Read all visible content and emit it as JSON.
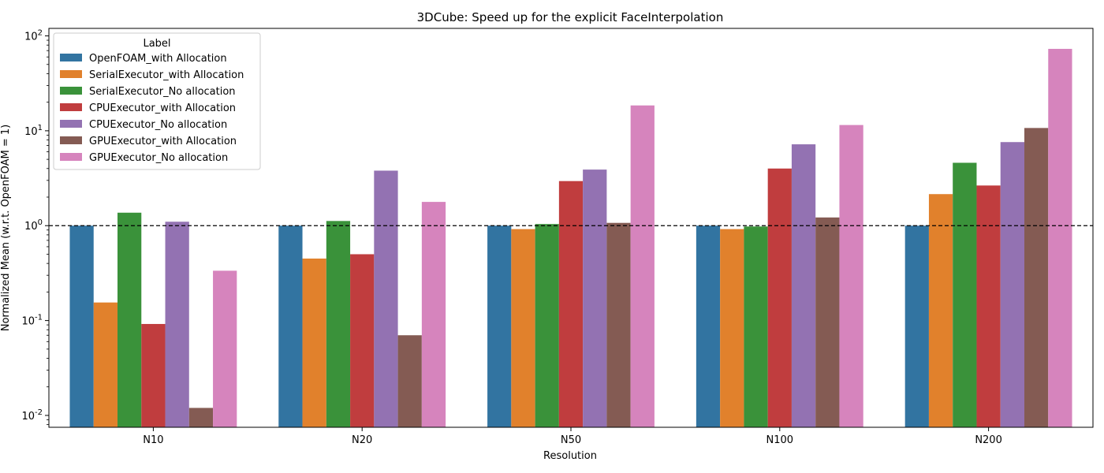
{
  "chart_data": {
    "type": "bar",
    "title": "3DCube: Speed up for the explicit FaceInterpolation",
    "xlabel": "Resolution",
    "ylabel": "Normalized Mean (w.r.t. OpenFOAM = 1)",
    "yscale": "log",
    "ylim": [
      0.0075,
      120
    ],
    "ytick_labels": [
      "10-2",
      "10-1",
      "100",
      "101",
      "102"
    ],
    "categories": [
      "N10",
      "N20",
      "N50",
      "N100",
      "N200"
    ],
    "reference_line": 1,
    "legend_title": "Label",
    "legend_position": "upper-left",
    "series": [
      {
        "name": "OpenFOAM_with Allocation",
        "color": "#3274a1",
        "values": [
          1.0,
          1.0,
          1.0,
          1.0,
          1.0
        ]
      },
      {
        "name": "SerialExecutor_with Allocation",
        "color": "#e1812c",
        "values": [
          0.155,
          0.45,
          0.92,
          0.92,
          2.15
        ]
      },
      {
        "name": "SerialExecutor_No allocation",
        "color": "#3a923a",
        "values": [
          1.37,
          1.12,
          1.04,
          0.98,
          4.6
        ]
      },
      {
        "name": "CPUExecutor_with Allocation",
        "color": "#c03d3e",
        "values": [
          0.092,
          0.5,
          2.95,
          4.0,
          2.65
        ]
      },
      {
        "name": "CPUExecutor_No allocation",
        "color": "#9372b2",
        "values": [
          1.1,
          3.8,
          3.9,
          7.2,
          7.6
        ]
      },
      {
        "name": "GPUExecutor_with Allocation",
        "color": "#845b53",
        "values": [
          0.012,
          0.07,
          1.07,
          1.22,
          10.7
        ]
      },
      {
        "name": "GPUExecutor_No allocation",
        "color": "#d684bd",
        "values": [
          0.335,
          1.78,
          18.5,
          11.5,
          73.0
        ]
      }
    ]
  }
}
